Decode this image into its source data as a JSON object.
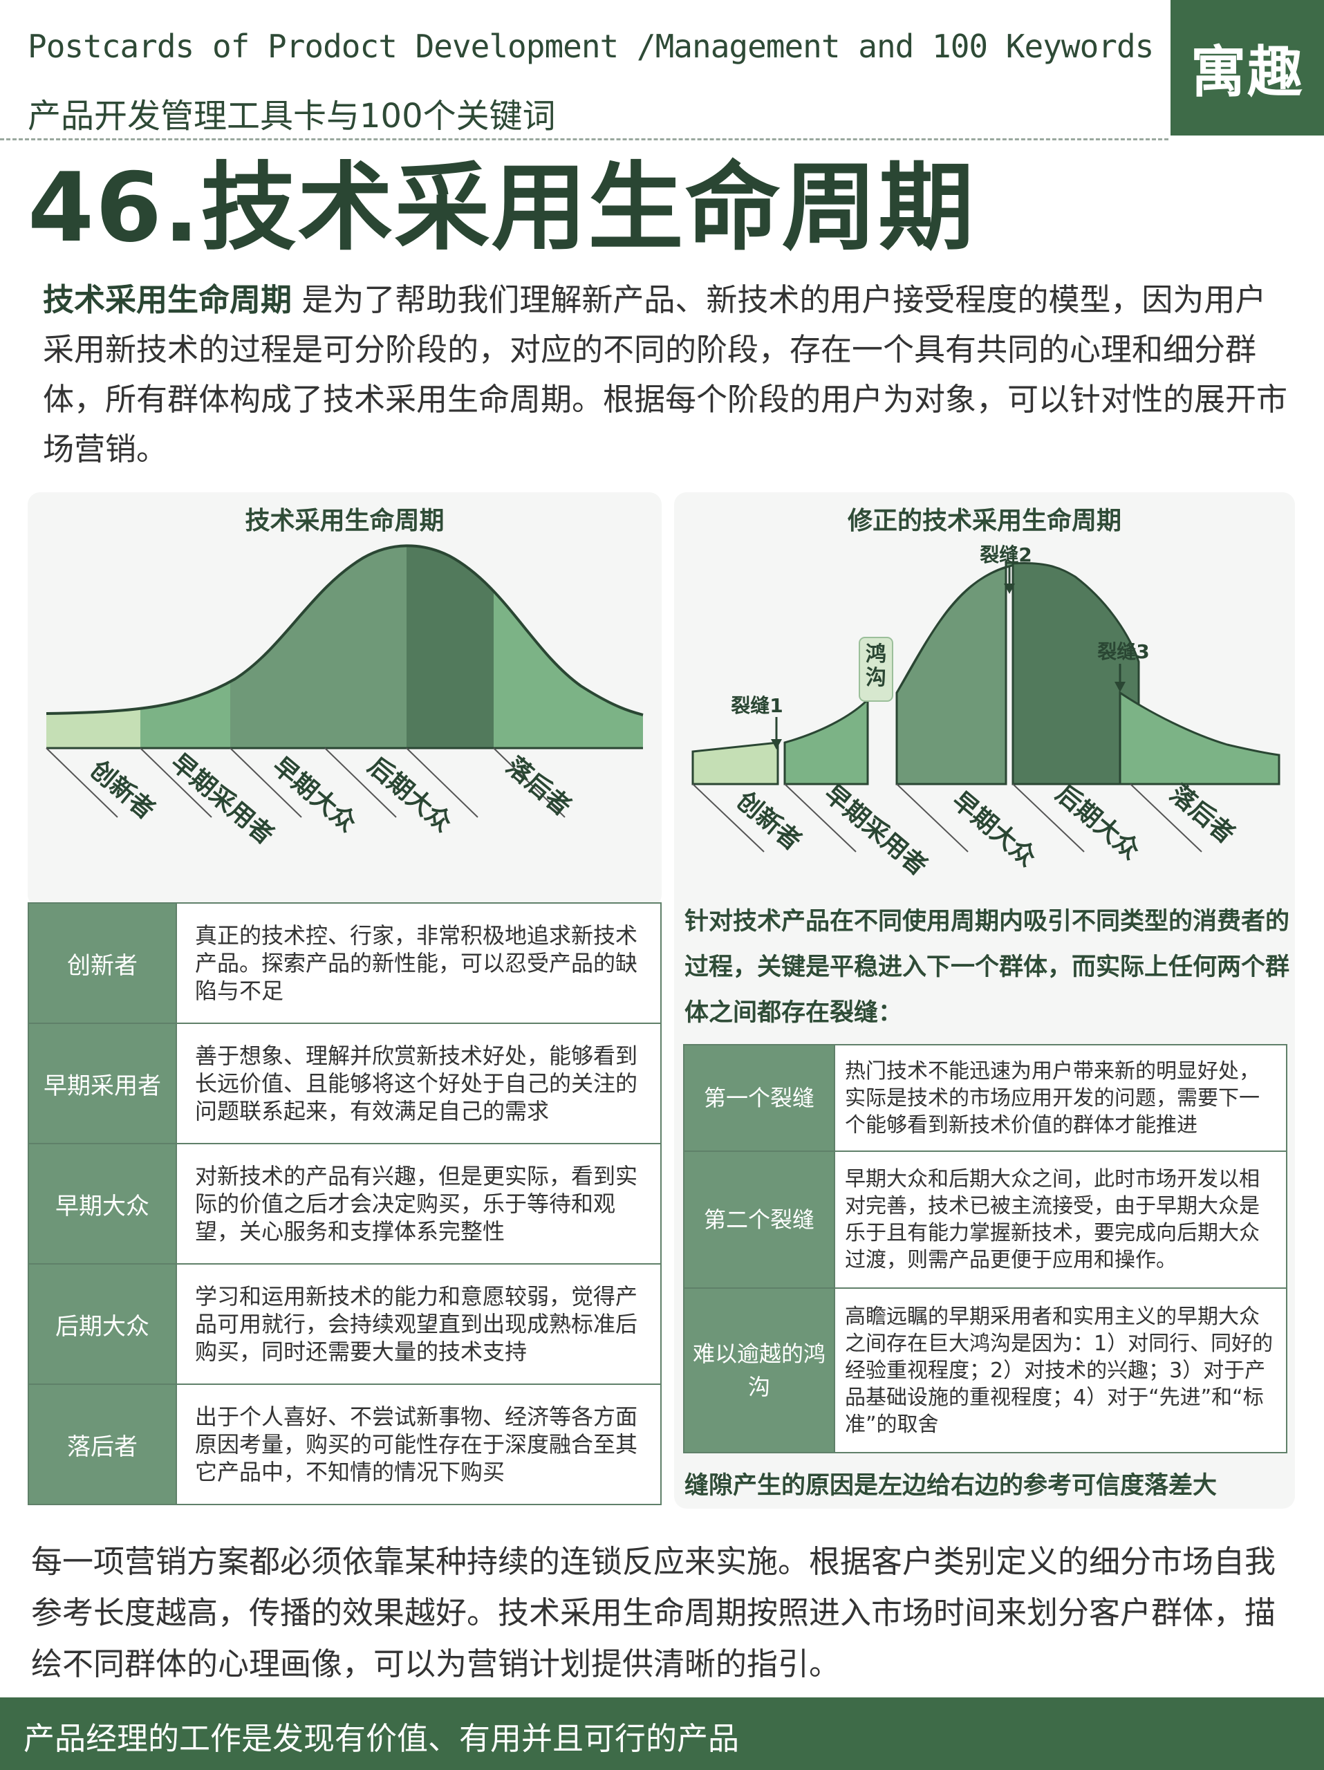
{
  "header": {
    "title_en": "Postcards of Prodoct Development /Management and 100 Keywords",
    "title_cn": "产品开发管理工具卡与100个关键词",
    "brand": "寓趣"
  },
  "page_title": "46.技术采用生命周期",
  "intro": {
    "term": "技术采用生命周期",
    "text": "是为了帮助我们理解新产品、新技术的用户接受程度的模型，因为用户采用新技术的过程是可分阶段的，对应的不同的阶段，存在一个具有共同的心理和细分群体，所有群体构成了技术采用生命周期。根据每个阶段的用户为对象，可以针对性的展开市场营销。"
  },
  "left_diagram": {
    "title": "技术采用生命周期",
    "labels": [
      "创新者",
      "早期采用者",
      "早期大众",
      "后期大众",
      "落后者"
    ]
  },
  "right_diagram": {
    "title": "修正的技术采用生命周期",
    "chasm_label": "鸿沟",
    "crack1": "裂缝1",
    "crack2": "裂缝2",
    "crack3": "裂缝3",
    "labels": [
      "创新者",
      "早期采用者",
      "早期大众",
      "后期大众",
      "落后者"
    ]
  },
  "left_table": [
    {
      "label": "创新者",
      "desc": "真正的技术控、行家，非常积极地追求新技术产品。探索产品的新性能，可以忍受产品的缺陷与不足"
    },
    {
      "label": "早期采用者",
      "desc": "善于想象、理解并欣赏新技术好处，能够看到长远价值、且能够将这个好处于自己的关注的问题联系起来，有效满足自己的需求"
    },
    {
      "label": "早期大众",
      "desc": "对新技术的产品有兴趣，但是更实际，看到实际的价值之后才会决定购买，乐于等待和观望，关心服务和支撑体系完整性"
    },
    {
      "label": "后期大众",
      "desc": "学习和运用新技术的能力和意愿较弱，觉得产品可用就行，会持续观望直到出现成熟标准后购买，同时还需要大量的技术支持"
    },
    {
      "label": "落后者",
      "desc": "出于个人喜好、不尝试新事物、经济等各方面原因考量，购买的可能性存在于深度融合至其它产品中，不知情的情况下购买"
    }
  ],
  "right_intro": "针对技术产品在不同使用周期内吸引不同类型的消费者的过程，关键是平稳进入下一个群体，而实际上任何两个群体之间都存在裂缝：",
  "right_table": [
    {
      "label": "第一个裂缝",
      "desc": "热门技术不能迅速为用户带来新的明显好处，实际是技术的市场应用开发的问题，需要下一个能够看到新技术价值的群体才能推进"
    },
    {
      "label": "第二个裂缝",
      "desc": "早期大众和后期大众之间，此时市场开发以相对完善，技术已被主流接受，由于早期大众是乐于且有能力掌握新技术，要完成向后期大众过渡，则需产品更便于应用和操作。"
    },
    {
      "label": "难以逾越的鸿沟",
      "desc": "高瞻远瞩的早期采用者和实用主义的早期大众之间存在巨大鸿沟是因为：1）对同行、同好的经验重视程度；2）对技术的兴趣；3）对于产品基础设施的重视程度；4）对于“先进”和“标准”的取舍"
    }
  ],
  "right_foot": "缝隙产生的原因是左边给右边的参考可信度落差大",
  "closing": "每一项营销方案都必须依靠某种持续的连锁反应来实施。根据客户类别定义的细分市场自我参考长度越高，传播的效果越好。技术采用生命周期按照进入市场时间来划分客户群体，描绘不同群体的心理画像，可以为营销计划提供清晰的指引。",
  "footer": "产品经理的工作是发现有价值、有用并且可行的产品",
  "colors": {
    "dark_green": "#2a4633",
    "brand_green": "#3e6b48",
    "seg1": "#c5dfb5",
    "seg2": "#7cb386",
    "seg3": "#6f9978",
    "seg4": "#527a5c",
    "seg5": "#7cb386"
  }
}
